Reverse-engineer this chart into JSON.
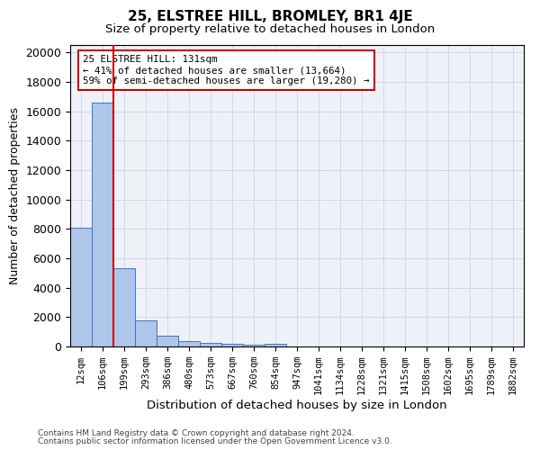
{
  "title_line1": "25, ELSTREE HILL, BROMLEY, BR1 4JE",
  "title_line2": "Size of property relative to detached houses in London",
  "xlabel": "Distribution of detached houses by size in London",
  "ylabel": "Number of detached properties",
  "bar_values": [
    8100,
    16600,
    5350,
    1750,
    750,
    380,
    270,
    175,
    150,
    200,
    0,
    0,
    0,
    0,
    0,
    0,
    0,
    0,
    0,
    0,
    0
  ],
  "bar_labels": [
    "12sqm",
    "106sqm",
    "199sqm",
    "293sqm",
    "386sqm",
    "480sqm",
    "573sqm",
    "667sqm",
    "760sqm",
    "854sqm",
    "947sqm",
    "1041sqm",
    "1134sqm",
    "1228sqm",
    "1321sqm",
    "1415sqm",
    "1508sqm",
    "1602sqm",
    "1695sqm",
    "1789sqm",
    "1882sqm"
  ],
  "bar_color": "#aec6e8",
  "bar_edge_color": "#4472c4",
  "grid_color": "#d0d8e8",
  "background_color": "#eef2f8",
  "annotation_line1": "25 ELSTREE HILL: 131sqm",
  "annotation_line2": "← 41% of detached houses are smaller (13,664)",
  "annotation_line3": "59% of semi-detached houses are larger (19,280) →",
  "annotation_box_color": "#ffffff",
  "annotation_border_color": "#cc0000",
  "red_line_x": 1.5,
  "ylim": [
    0,
    20500
  ],
  "yticks": [
    0,
    2000,
    4000,
    6000,
    8000,
    10000,
    12000,
    14000,
    16000,
    18000,
    20000
  ],
  "footer_line1": "Contains HM Land Registry data © Crown copyright and database right 2024.",
  "footer_line2": "Contains public sector information licensed under the Open Government Licence v3.0."
}
